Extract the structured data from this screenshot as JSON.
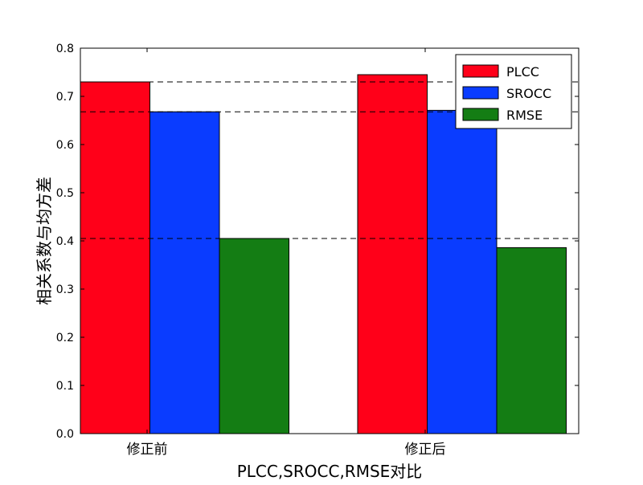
{
  "chart_data": {
    "type": "bar",
    "title": "",
    "xlabel": "PLCC,SROCC,RMSE对比",
    "ylabel": "相关系数与均方差",
    "categories": [
      "修正前",
      "修正后"
    ],
    "series": [
      {
        "name": "PLCC",
        "color": "#ff0019",
        "values": [
          0.73,
          0.745
        ]
      },
      {
        "name": "SROCC",
        "color": "#0a3cff",
        "values": [
          0.668,
          0.671
        ]
      },
      {
        "name": "RMSE",
        "color": "#147d14",
        "values": [
          0.405,
          0.386
        ]
      }
    ],
    "ylim": [
      0,
      0.8
    ],
    "yticks": [
      "0.0",
      "0.1",
      "0.2",
      "0.3",
      "0.4",
      "0.5",
      "0.6",
      "0.7",
      "0.8"
    ],
    "reference_lines": [
      0.73,
      0.668,
      0.405
    ],
    "grid": false,
    "legend_position": "top-right"
  }
}
